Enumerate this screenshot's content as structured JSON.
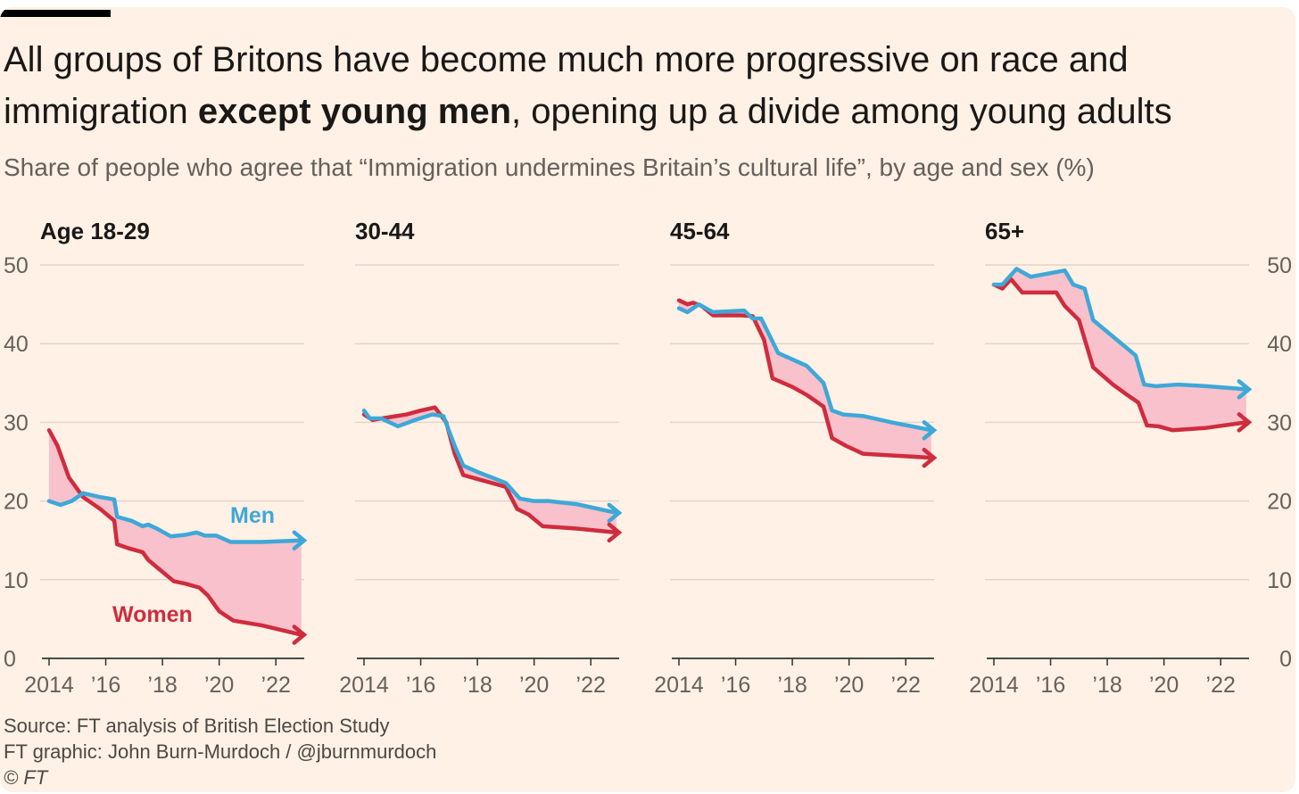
{
  "headline": {
    "part1": "All groups of Britons have become much more progressive on race and immigration ",
    "bold": "except young men",
    "part2": ", opening up a divide among young adults"
  },
  "subtitle": "Share of people who agree that “Immigration undermines Britain’s cultural life”, by age and sex (%)",
  "footer": {
    "source": "Source: FT analysis of British Election Study",
    "credit": "FT graphic: John Burn-Murdoch / @jburnmurdoch",
    "copyright": "© FT"
  },
  "colors": {
    "men": "#3ea8d8",
    "women": "#cf2c3e",
    "gap_fill": "#f9c1cb",
    "grid": "#e0d6cc",
    "axis": "#333333",
    "tick_text": "#66605c",
    "background": "#fff1e5"
  },
  "chart_data": {
    "type": "line",
    "y_ticks": [
      0,
      10,
      20,
      30,
      40,
      50
    ],
    "x_tick_labels": [
      "2014",
      "’16",
      "’18",
      "’20",
      "’22"
    ],
    "x_tick_values": [
      2014,
      2016,
      2018,
      2020,
      2022
    ],
    "xlim": [
      2014,
      2023
    ],
    "ylim": [
      0,
      50
    ],
    "series_labels": {
      "men": "Men",
      "women": "Women"
    },
    "panels": [
      {
        "title": "Age 18-29",
        "men": [
          [
            2014,
            20.0
          ],
          [
            2014.4,
            19.5
          ],
          [
            2014.8,
            20.0
          ],
          [
            2015.2,
            21.0
          ],
          [
            2015.8,
            20.5
          ],
          [
            2016.3,
            20.2
          ],
          [
            2016.4,
            18.0
          ],
          [
            2016.9,
            17.5
          ],
          [
            2017.3,
            16.8
          ],
          [
            2017.5,
            17.0
          ],
          [
            2017.8,
            16.5
          ],
          [
            2018.3,
            15.5
          ],
          [
            2018.8,
            15.7
          ],
          [
            2019.2,
            16.0
          ],
          [
            2019.5,
            15.6
          ],
          [
            2019.9,
            15.6
          ],
          [
            2020.4,
            14.8
          ],
          [
            2021.5,
            14.8
          ],
          [
            2022.9,
            15.0
          ]
        ],
        "women": [
          [
            2014,
            29.0
          ],
          [
            2014.3,
            27.0
          ],
          [
            2014.7,
            23.0
          ],
          [
            2015.2,
            20.5
          ],
          [
            2015.8,
            19.0
          ],
          [
            2016.3,
            17.5
          ],
          [
            2016.4,
            14.5
          ],
          [
            2016.8,
            14.0
          ],
          [
            2017.3,
            13.5
          ],
          [
            2017.5,
            12.5
          ],
          [
            2018.0,
            11.0
          ],
          [
            2018.4,
            9.8
          ],
          [
            2018.8,
            9.5
          ],
          [
            2019.3,
            9.0
          ],
          [
            2019.6,
            8.0
          ],
          [
            2020.0,
            6.0
          ],
          [
            2020.5,
            4.8
          ],
          [
            2021.5,
            4.2
          ],
          [
            2022.9,
            3.0
          ]
        ]
      },
      {
        "title": "30-44",
        "men": [
          [
            2014,
            31.5
          ],
          [
            2014.2,
            30.5
          ],
          [
            2014.6,
            30.5
          ],
          [
            2015.2,
            29.5
          ],
          [
            2015.8,
            30.3
          ],
          [
            2016.4,
            31.0
          ],
          [
            2016.8,
            30.8
          ],
          [
            2017.2,
            27.0
          ],
          [
            2017.5,
            24.5
          ],
          [
            2018.0,
            23.7
          ],
          [
            2018.5,
            23.0
          ],
          [
            2019.0,
            22.3
          ],
          [
            2019.5,
            20.3
          ],
          [
            2020.0,
            20.0
          ],
          [
            2020.5,
            20.0
          ],
          [
            2021.5,
            19.6
          ],
          [
            2022.9,
            18.5
          ]
        ],
        "women": [
          [
            2014,
            31.0
          ],
          [
            2014.3,
            30.3
          ],
          [
            2014.8,
            30.6
          ],
          [
            2015.5,
            31.0
          ],
          [
            2016.0,
            31.5
          ],
          [
            2016.5,
            31.9
          ],
          [
            2016.9,
            30.0
          ],
          [
            2017.2,
            26.0
          ],
          [
            2017.5,
            23.3
          ],
          [
            2018.0,
            22.8
          ],
          [
            2018.5,
            22.3
          ],
          [
            2019.0,
            21.8
          ],
          [
            2019.4,
            19.0
          ],
          [
            2019.8,
            18.3
          ],
          [
            2020.3,
            16.8
          ],
          [
            2021.5,
            16.5
          ],
          [
            2022.9,
            16.0
          ]
        ]
      },
      {
        "title": "45-64",
        "men": [
          [
            2014,
            44.5
          ],
          [
            2014.3,
            44.0
          ],
          [
            2014.7,
            45.0
          ],
          [
            2015.2,
            44.0
          ],
          [
            2016.3,
            44.2
          ],
          [
            2016.6,
            43.2
          ],
          [
            2016.9,
            43.2
          ],
          [
            2017.5,
            38.8
          ],
          [
            2018.0,
            38.0
          ],
          [
            2018.5,
            37.2
          ],
          [
            2019.1,
            35.0
          ],
          [
            2019.4,
            31.5
          ],
          [
            2019.8,
            31.0
          ],
          [
            2020.5,
            30.8
          ],
          [
            2021.5,
            30.0
          ],
          [
            2022.9,
            29.0
          ]
        ],
        "women": [
          [
            2014,
            45.5
          ],
          [
            2014.3,
            45.0
          ],
          [
            2014.5,
            45.2
          ],
          [
            2014.8,
            44.8
          ],
          [
            2015.2,
            43.6
          ],
          [
            2016.2,
            43.6
          ],
          [
            2016.6,
            43.5
          ],
          [
            2017.0,
            40.5
          ],
          [
            2017.3,
            35.6
          ],
          [
            2018.0,
            34.5
          ],
          [
            2018.5,
            33.5
          ],
          [
            2019.1,
            32.0
          ],
          [
            2019.4,
            28.0
          ],
          [
            2019.9,
            27.0
          ],
          [
            2020.5,
            26.0
          ],
          [
            2021.5,
            25.8
          ],
          [
            2022.9,
            25.5
          ]
        ]
      },
      {
        "title": "65+",
        "men": [
          [
            2014,
            47.5
          ],
          [
            2014.3,
            47.5
          ],
          [
            2014.8,
            49.5
          ],
          [
            2015.3,
            48.5
          ],
          [
            2016.5,
            49.3
          ],
          [
            2016.8,
            47.5
          ],
          [
            2017.2,
            47.0
          ],
          [
            2017.5,
            43.0
          ],
          [
            2018.0,
            41.5
          ],
          [
            2018.5,
            40.0
          ],
          [
            2019.0,
            38.5
          ],
          [
            2019.3,
            34.8
          ],
          [
            2019.7,
            34.6
          ],
          [
            2020.5,
            34.8
          ],
          [
            2021.5,
            34.6
          ],
          [
            2022.9,
            34.2
          ]
        ],
        "women": [
          [
            2014,
            47.5
          ],
          [
            2014.3,
            47.0
          ],
          [
            2014.6,
            48.2
          ],
          [
            2015.0,
            46.5
          ],
          [
            2016.2,
            46.5
          ],
          [
            2016.5,
            44.8
          ],
          [
            2017.0,
            43.0
          ],
          [
            2017.5,
            37.0
          ],
          [
            2018.2,
            34.8
          ],
          [
            2018.7,
            33.5
          ],
          [
            2019.1,
            32.5
          ],
          [
            2019.4,
            29.6
          ],
          [
            2019.8,
            29.5
          ],
          [
            2020.3,
            29.0
          ],
          [
            2021.5,
            29.3
          ],
          [
            2022.9,
            30.0
          ]
        ]
      }
    ]
  }
}
